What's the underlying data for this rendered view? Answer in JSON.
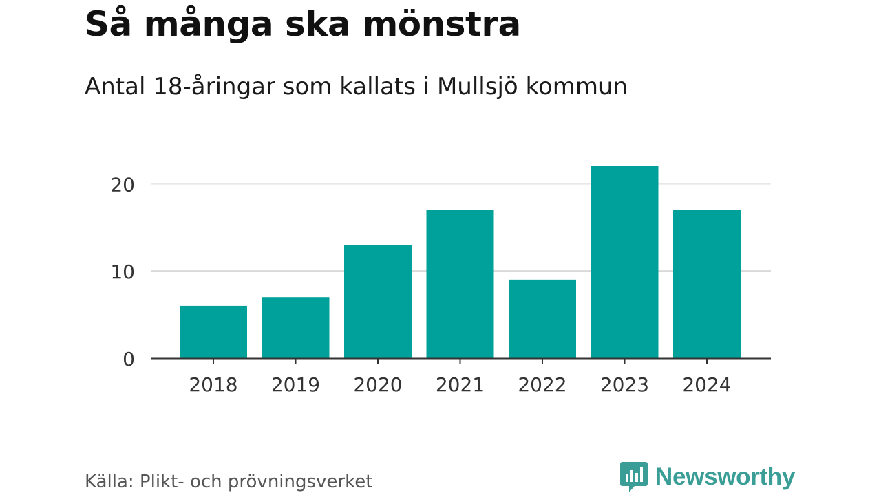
{
  "header": {
    "title": "Så många ska mönstra",
    "subtitle": "Antal 18-åringar som kallats i Mullsjö kommun"
  },
  "footer": {
    "source": "Källa: Plikt- och prövningsverket",
    "brand": "Newsworthy",
    "brand_icon": "bar-chart-speech-bubble-icon"
  },
  "colors": {
    "bar": "#00a19a",
    "grid": "#d9d9d9",
    "axis": "#333333",
    "brand": "#3a9e97"
  },
  "chart_data": {
    "type": "bar",
    "categories": [
      "2018",
      "2019",
      "2020",
      "2021",
      "2022",
      "2023",
      "2024"
    ],
    "values": [
      6,
      7,
      13,
      17,
      9,
      22,
      17
    ],
    "yticks": [
      0,
      10,
      20
    ],
    "ylim": [
      0,
      22
    ],
    "grid": true,
    "legend": "none",
    "xlabel": "",
    "ylabel": ""
  }
}
